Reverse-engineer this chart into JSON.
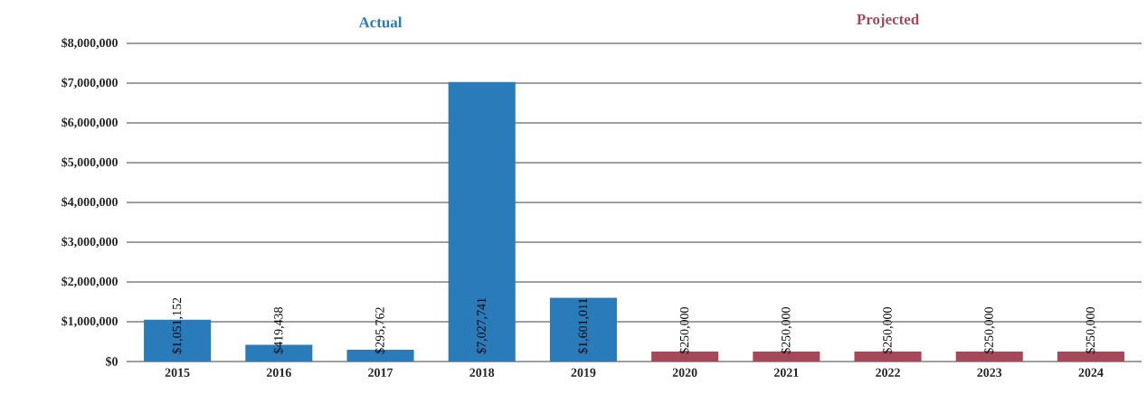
{
  "chart_data": {
    "type": "bar",
    "categories": [
      "2015",
      "2016",
      "2017",
      "2018",
      "2019",
      "2020",
      "2021",
      "2022",
      "2023",
      "2024"
    ],
    "series": [
      {
        "name": "Actual",
        "color": "#2a7bba",
        "values": [
          1051152,
          419438,
          295762,
          7027741,
          1601011,
          null,
          null,
          null,
          null,
          null
        ],
        "value_labels": [
          "$1,051,152",
          "$419,438",
          "$295,762",
          "$7,027,741",
          "$1,601,011",
          null,
          null,
          null,
          null,
          null
        ]
      },
      {
        "name": "Projected",
        "color": "#a6475a",
        "values": [
          null,
          null,
          null,
          null,
          null,
          250000,
          250000,
          250000,
          250000,
          250000
        ],
        "value_labels": [
          null,
          null,
          null,
          null,
          null,
          "$250,000",
          "$250,000",
          "$250,000",
          "$250,000",
          "$250,000"
        ]
      }
    ],
    "ylim": [
      0,
      8000000
    ],
    "yticks": [
      {
        "value": 0,
        "label": "$0"
      },
      {
        "value": 1000000,
        "label": "$1,000,000"
      },
      {
        "value": 2000000,
        "label": "$2,000,000"
      },
      {
        "value": 3000000,
        "label": "$3,000,000"
      },
      {
        "value": 4000000,
        "label": "$4,000,000"
      },
      {
        "value": 5000000,
        "label": "$5,000,000"
      },
      {
        "value": 6000000,
        "label": "$6,000,000"
      },
      {
        "value": 7000000,
        "label": "$7,000,000"
      },
      {
        "value": 8000000,
        "label": "$8,000,000"
      }
    ],
    "grid": "y"
  }
}
